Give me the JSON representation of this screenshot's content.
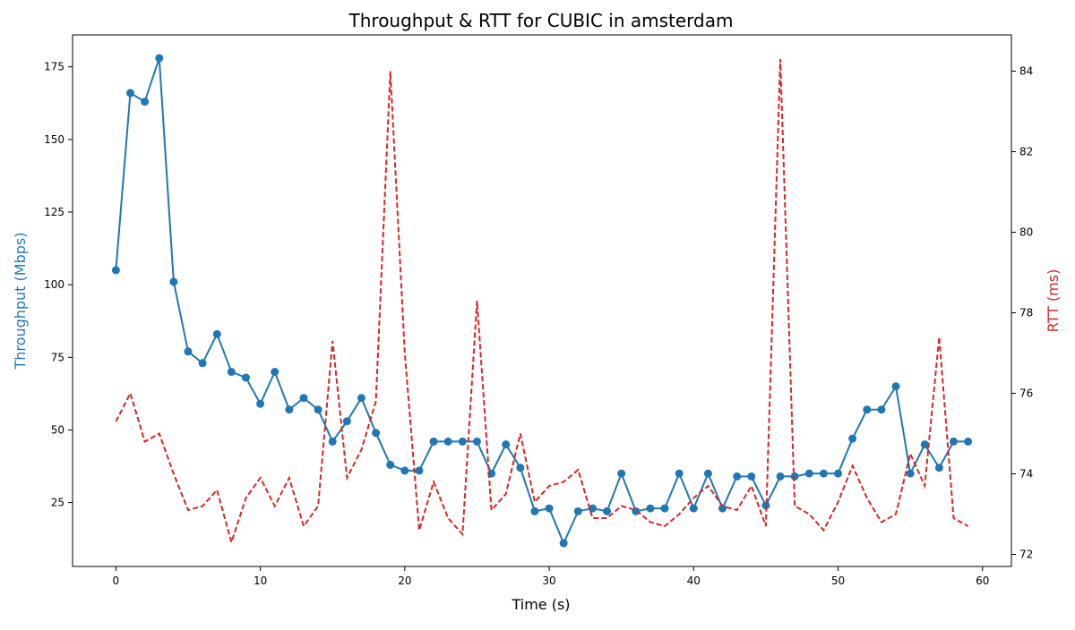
{
  "chart_data": {
    "type": "line",
    "title": "Throughput & RTT for CUBIC in amsterdam",
    "xlabel": "Time (s)",
    "ylabel_left": "Throughput (Mbps)",
    "ylabel_right": "RTT (ms)",
    "xlim": [
      -3,
      62
    ],
    "ylim_left": [
      3,
      186
    ],
    "ylim_right": [
      71.7,
      84.9
    ],
    "x_ticks": [
      0,
      10,
      20,
      30,
      40,
      50,
      60
    ],
    "y_left_ticks": [
      25,
      50,
      75,
      100,
      125,
      150,
      175
    ],
    "y_right_ticks": [
      72,
      74,
      76,
      78,
      80,
      82,
      84
    ],
    "grid": false,
    "x": [
      0,
      1,
      2,
      3,
      4,
      5,
      6,
      7,
      8,
      9,
      10,
      11,
      12,
      13,
      14,
      15,
      16,
      17,
      18,
      19,
      20,
      21,
      22,
      23,
      24,
      25,
      26,
      27,
      28,
      29,
      30,
      31,
      32,
      33,
      34,
      35,
      36,
      37,
      38,
      39,
      40,
      41,
      42,
      43,
      44,
      45,
      46,
      47,
      48,
      49,
      50,
      51,
      52,
      53,
      54,
      55,
      56,
      57,
      58,
      59
    ],
    "series": [
      {
        "axis": "left",
        "color": "#1f77b4",
        "style": "solid",
        "marker": "circle",
        "values": [
          105,
          166,
          163,
          178,
          101,
          77,
          73,
          83,
          70,
          68,
          59,
          70,
          57,
          61,
          57,
          46,
          53,
          61,
          49,
          38,
          36,
          36,
          46,
          46,
          46,
          46,
          35,
          45,
          37,
          22,
          23,
          11,
          22,
          23,
          22,
          35,
          22,
          23,
          23,
          35,
          23,
          35,
          23,
          34,
          34,
          24,
          34,
          34,
          35,
          35,
          35,
          47,
          57,
          57,
          65,
          35,
          45,
          37,
          46,
          46
        ]
      },
      {
        "axis": "right",
        "color": "#d62728",
        "style": "dashed",
        "marker": "none",
        "values": [
          75.3,
          76.0,
          74.8,
          75.0,
          74.0,
          73.1,
          73.2,
          73.6,
          72.3,
          73.4,
          73.9,
          73.2,
          73.9,
          72.7,
          73.2,
          77.3,
          73.9,
          74.6,
          75.8,
          84.0,
          77.0,
          72.6,
          73.8,
          72.9,
          72.5,
          78.3,
          73.1,
          73.5,
          75.0,
          73.3,
          73.7,
          73.8,
          74.1,
          72.9,
          72.9,
          73.2,
          73.1,
          72.8,
          72.7,
          73.0,
          73.4,
          73.7,
          73.2,
          73.1,
          73.7,
          72.7,
          84.3,
          73.2,
          73.0,
          72.6,
          73.3,
          74.2,
          73.4,
          72.8,
          73.0,
          74.5,
          73.7,
          77.4,
          72.9,
          72.7
        ]
      }
    ]
  },
  "colors": {
    "throughput": "#1f77b4",
    "rtt": "#d62728"
  }
}
